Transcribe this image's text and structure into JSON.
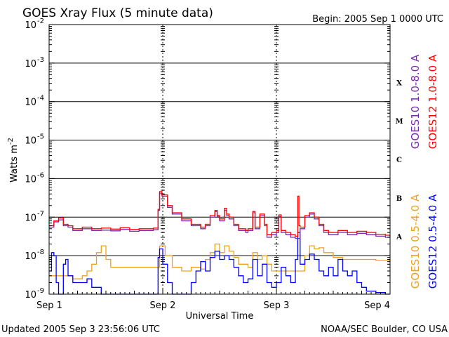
{
  "chart_data": {
    "type": "line",
    "title": "GOES Xray Flux (5 minute data)",
    "subtitle": "Begin:  2005 Sep 1 0000 UTC",
    "xlabel": "Universal Time",
    "ylabel": "Watts m",
    "ylabel_sup": "-2",
    "y_scale": "log",
    "ylim": [
      1e-09,
      0.01
    ],
    "xlim": [
      "2005-09-01T00:00",
      "2005-09-04T00:00"
    ],
    "x_ticks": [
      {
        "x": "2005-09-01T00:00",
        "label": "Sep 1"
      },
      {
        "x": "2005-09-02T00:00",
        "label": "Sep 2"
      },
      {
        "x": "2005-09-03T00:00",
        "label": "Sep 3"
      },
      {
        "x": "2005-09-04T00:00",
        "label": "Sep 4"
      }
    ],
    "y_ticks": [
      {
        "exp": -9,
        "base": "10",
        "sup": "-9"
      },
      {
        "exp": -8,
        "base": "10",
        "sup": "-8"
      },
      {
        "exp": -7,
        "base": "10",
        "sup": "-7"
      },
      {
        "exp": -6,
        "base": "10",
        "sup": "-6"
      },
      {
        "exp": -5,
        "base": "10",
        "sup": "-5"
      },
      {
        "exp": -4,
        "base": "10",
        "sup": "-4"
      },
      {
        "exp": -3,
        "base": "10",
        "sup": "-3"
      },
      {
        "exp": -2,
        "base": "10",
        "sup": "-2"
      }
    ],
    "flare_classes": [
      {
        "label": "A",
        "exp": -8
      },
      {
        "label": "B",
        "exp": -7
      },
      {
        "label": "C",
        "exp": -6
      },
      {
        "label": "M",
        "exp": -5
      },
      {
        "label": "X",
        "exp": -4
      }
    ],
    "grid": true,
    "series": [
      {
        "name": "GOES10 1.0-8.0 A",
        "color": "#7b2ab0",
        "points": [
          [
            "2005-09-01T00:00",
            5.5e-08
          ],
          [
            "2005-09-01T01:00",
            7.5e-08
          ],
          [
            "2005-09-01T02:00",
            8.5e-08
          ],
          [
            "2005-09-01T03:00",
            6e-08
          ],
          [
            "2005-09-01T04:00",
            5.5e-08
          ],
          [
            "2005-09-01T05:00",
            4.5e-08
          ],
          [
            "2005-09-01T07:00",
            5e-08
          ],
          [
            "2005-09-01T09:00",
            4.5e-08
          ],
          [
            "2005-09-01T11:00",
            4.6e-08
          ],
          [
            "2005-09-01T13:00",
            4.4e-08
          ],
          [
            "2005-09-01T15:00",
            4.8e-08
          ],
          [
            "2005-09-01T17:00",
            4.3e-08
          ],
          [
            "2005-09-01T19:00",
            4.5e-08
          ],
          [
            "2005-09-01T21:00",
            4.5e-08
          ],
          [
            "2005-09-01T22:00",
            4.7e-08
          ],
          [
            "2005-09-01T23:00",
            1.5e-07
          ],
          [
            "2005-09-01T23:20",
            4.2e-07
          ],
          [
            "2005-09-01T23:50",
            3.5e-07
          ],
          [
            "2005-09-02T01:00",
            1.8e-07
          ],
          [
            "2005-09-02T02:00",
            1.2e-07
          ],
          [
            "2005-09-02T04:00",
            8e-08
          ],
          [
            "2005-09-02T06:00",
            6e-08
          ],
          [
            "2005-09-02T08:00",
            5e-08
          ],
          [
            "2005-09-02T09:00",
            6e-08
          ],
          [
            "2005-09-02T10:00",
            1e-07
          ],
          [
            "2005-09-02T11:00",
            1.4e-07
          ],
          [
            "2005-09-02T11:30",
            1.05e-07
          ],
          [
            "2005-09-02T12:00",
            8e-08
          ],
          [
            "2005-09-02T13:00",
            1.5e-07
          ],
          [
            "2005-09-02T13:30",
            1.1e-07
          ],
          [
            "2005-09-02T14:00",
            9e-08
          ],
          [
            "2005-09-02T15:00",
            6e-08
          ],
          [
            "2005-09-02T16:00",
            4.5e-08
          ],
          [
            "2005-09-02T17:30",
            4e-08
          ],
          [
            "2005-09-02T18:00",
            4.5e-08
          ],
          [
            "2005-09-02T19:00",
            1.3e-07
          ],
          [
            "2005-09-02T19:30",
            5e-08
          ],
          [
            "2005-09-02T20:30",
            1.1e-07
          ],
          [
            "2005-09-02T21:30",
            6e-08
          ],
          [
            "2005-09-02T22:00",
            3e-08
          ],
          [
            "2005-09-02T23:00",
            3.5e-08
          ],
          [
            "2005-09-03T00:00",
            4e-08
          ],
          [
            "2005-09-03T00:30",
            1.05e-07
          ],
          [
            "2005-09-03T01:00",
            4e-08
          ],
          [
            "2005-09-03T02:00",
            3.5e-08
          ],
          [
            "2005-09-03T03:00",
            3e-08
          ],
          [
            "2005-09-03T04:00",
            2.8e-08
          ],
          [
            "2005-09-03T05:00",
            5e-08
          ],
          [
            "2005-09-03T06:00",
            1e-07
          ],
          [
            "2005-09-03T07:00",
            1.2e-07
          ],
          [
            "2005-09-03T08:00",
            9e-08
          ],
          [
            "2005-09-03T09:00",
            6e-08
          ],
          [
            "2005-09-03T10:00",
            4e-08
          ],
          [
            "2005-09-03T11:00",
            3.5e-08
          ],
          [
            "2005-09-03T13:00",
            4e-08
          ],
          [
            "2005-09-03T15:00",
            3.5e-08
          ],
          [
            "2005-09-03T17:00",
            3.8e-08
          ],
          [
            "2005-09-03T19:00",
            3.5e-08
          ],
          [
            "2005-09-03T21:00",
            3.2e-08
          ],
          [
            "2005-09-03T23:00",
            3e-08
          ],
          [
            "2005-09-03T23:55",
            3e-08
          ]
        ]
      },
      {
        "name": "GOES12 1.0-8.0 A",
        "color": "#ff0000",
        "points": [
          [
            "2005-09-01T00:00",
            6e-08
          ],
          [
            "2005-09-01T01:00",
            8e-08
          ],
          [
            "2005-09-01T02:00",
            9.5e-08
          ],
          [
            "2005-09-01T03:00",
            6.5e-08
          ],
          [
            "2005-09-01T04:00",
            6e-08
          ],
          [
            "2005-09-01T05:00",
            5e-08
          ],
          [
            "2005-09-01T07:00",
            5.5e-08
          ],
          [
            "2005-09-01T09:00",
            5e-08
          ],
          [
            "2005-09-01T11:00",
            5.2e-08
          ],
          [
            "2005-09-01T13:00",
            4.9e-08
          ],
          [
            "2005-09-01T15:00",
            5.3e-08
          ],
          [
            "2005-09-01T17:00",
            4.8e-08
          ],
          [
            "2005-09-01T19:00",
            5e-08
          ],
          [
            "2005-09-01T21:00",
            5e-08
          ],
          [
            "2005-09-01T22:00",
            5.2e-08
          ],
          [
            "2005-09-01T23:00",
            1.6e-07
          ],
          [
            "2005-09-01T23:20",
            4.6e-07
          ],
          [
            "2005-09-01T23:50",
            3.8e-07
          ],
          [
            "2005-09-02T01:00",
            2e-07
          ],
          [
            "2005-09-02T02:00",
            1.3e-07
          ],
          [
            "2005-09-02T04:00",
            9e-08
          ],
          [
            "2005-09-02T06:00",
            6.5e-08
          ],
          [
            "2005-09-02T08:00",
            5.5e-08
          ],
          [
            "2005-09-02T09:00",
            6.5e-08
          ],
          [
            "2005-09-02T10:00",
            1.1e-07
          ],
          [
            "2005-09-02T11:00",
            1.5e-07
          ],
          [
            "2005-09-02T11:30",
            1.1e-07
          ],
          [
            "2005-09-02T12:00",
            9e-08
          ],
          [
            "2005-09-02T13:00",
            1.7e-07
          ],
          [
            "2005-09-02T13:30",
            1.2e-07
          ],
          [
            "2005-09-02T14:00",
            1e-07
          ],
          [
            "2005-09-02T15:00",
            6.5e-08
          ],
          [
            "2005-09-02T16:00",
            5e-08
          ],
          [
            "2005-09-02T17:30",
            4.5e-08
          ],
          [
            "2005-09-02T18:00",
            5e-08
          ],
          [
            "2005-09-02T19:00",
            1.4e-07
          ],
          [
            "2005-09-02T19:30",
            5.5e-08
          ],
          [
            "2005-09-02T20:30",
            1.2e-07
          ],
          [
            "2005-09-02T21:30",
            6.5e-08
          ],
          [
            "2005-09-02T22:00",
            3.5e-08
          ],
          [
            "2005-09-02T23:00",
            4e-08
          ],
          [
            "2005-09-03T00:00",
            4.5e-08
          ],
          [
            "2005-09-03T00:30",
            1.15e-07
          ],
          [
            "2005-09-03T01:00",
            4.5e-08
          ],
          [
            "2005-09-03T02:00",
            4e-08
          ],
          [
            "2005-09-03T03:00",
            3.5e-08
          ],
          [
            "2005-09-03T04:00",
            3.2e-08
          ],
          [
            "2005-09-03T04:30",
            3.5e-07
          ],
          [
            "2005-09-03T04:45",
            6e-08
          ],
          [
            "2005-09-03T05:00",
            5.5e-08
          ],
          [
            "2005-09-03T06:00",
            1.1e-07
          ],
          [
            "2005-09-03T07:00",
            1.3e-07
          ],
          [
            "2005-09-03T08:00",
            1e-07
          ],
          [
            "2005-09-03T09:00",
            6.5e-08
          ],
          [
            "2005-09-03T10:00",
            4.5e-08
          ],
          [
            "2005-09-03T11:00",
            4e-08
          ],
          [
            "2005-09-03T13:00",
            4.5e-08
          ],
          [
            "2005-09-03T15:00",
            4e-08
          ],
          [
            "2005-09-03T17:00",
            4.3e-08
          ],
          [
            "2005-09-03T19:00",
            4e-08
          ],
          [
            "2005-09-03T21:00",
            3.6e-08
          ],
          [
            "2005-09-03T23:00",
            3.4e-08
          ],
          [
            "2005-09-03T23:55",
            3.2e-08
          ]
        ]
      },
      {
        "name": "GOES10 0.5-4.0 A",
        "color": "#f0a020",
        "points": [
          [
            "2005-09-01T00:00",
            3e-09
          ],
          [
            "2005-09-01T03:00",
            3e-09
          ],
          [
            "2005-09-01T05:00",
            2.5e-09
          ],
          [
            "2005-09-01T07:00",
            3e-09
          ],
          [
            "2005-09-01T08:00",
            4e-09
          ],
          [
            "2005-09-01T09:00",
            6e-09
          ],
          [
            "2005-09-01T10:00",
            1.2e-08
          ],
          [
            "2005-09-01T11:00",
            1.8e-08
          ],
          [
            "2005-09-01T12:00",
            8e-09
          ],
          [
            "2005-09-01T13:00",
            5e-09
          ],
          [
            "2005-09-01T16:00",
            5e-09
          ],
          [
            "2005-09-01T20:00",
            5e-09
          ],
          [
            "2005-09-01T23:00",
            5e-09
          ],
          [
            "2005-09-01T23:20",
            1.8e-08
          ],
          [
            "2005-09-02T00:30",
            1e-08
          ],
          [
            "2005-09-02T02:00",
            5e-09
          ],
          [
            "2005-09-02T04:00",
            4e-09
          ],
          [
            "2005-09-02T06:00",
            5e-09
          ],
          [
            "2005-09-02T08:00",
            4.5e-09
          ],
          [
            "2005-09-02T09:00",
            8e-09
          ],
          [
            "2005-09-02T10:00",
            1.2e-08
          ],
          [
            "2005-09-02T11:00",
            2e-08
          ],
          [
            "2005-09-02T12:00",
            1.2e-08
          ],
          [
            "2005-09-02T13:00",
            1.8e-08
          ],
          [
            "2005-09-02T14:00",
            1.3e-08
          ],
          [
            "2005-09-02T15:00",
            9e-09
          ],
          [
            "2005-09-02T16:00",
            6e-09
          ],
          [
            "2005-09-02T18:00",
            5e-09
          ],
          [
            "2005-09-02T19:00",
            1.2e-08
          ],
          [
            "2005-09-02T20:00",
            8e-09
          ],
          [
            "2005-09-02T21:00",
            1e-08
          ],
          [
            "2005-09-02T22:00",
            6e-09
          ],
          [
            "2005-09-02T23:00",
            4e-09
          ],
          [
            "2005-09-02T23:55",
            4e-09
          ],
          [
            "2005-09-03T06:00",
            1e-08
          ],
          [
            "2005-09-03T07:00",
            1.8e-08
          ],
          [
            "2005-09-03T08:00",
            1.5e-08
          ],
          [
            "2005-09-03T09:00",
            1.6e-08
          ],
          [
            "2005-09-03T10:00",
            1.2e-08
          ],
          [
            "2005-09-03T12:00",
            9e-09
          ],
          [
            "2005-09-03T14:00",
            8e-09
          ],
          [
            "2005-09-03T18:00",
            8e-09
          ],
          [
            "2005-09-03T21:00",
            7.5e-09
          ],
          [
            "2005-09-03T23:55",
            7e-09
          ]
        ]
      },
      {
        "name": "GOES12 0.5-4.0 A",
        "color": "#0000ff",
        "points": [
          [
            "2005-09-01T00:00",
            4e-09
          ],
          [
            "2005-09-01T00:30",
            1.2e-08
          ],
          [
            "2005-09-01T01:00",
            1e-08
          ],
          [
            "2005-09-01T01:30",
            2e-09
          ],
          [
            "2005-09-01T02:00",
            1e-09
          ],
          [
            "2005-09-01T03:00",
            6e-09
          ],
          [
            "2005-09-01T03:30",
            8e-09
          ],
          [
            "2005-09-01T04:00",
            3e-09
          ],
          [
            "2005-09-01T05:00",
            2e-09
          ],
          [
            "2005-09-01T07:00",
            2e-09
          ],
          [
            "2005-09-01T08:00",
            2.5e-09
          ],
          [
            "2005-09-01T09:00",
            1.5e-09
          ],
          [
            "2005-09-01T11:00",
            1e-09
          ],
          [
            "2005-09-01T14:00",
            1e-09
          ],
          [
            "2005-09-01T17:00",
            1e-09
          ],
          [
            "2005-09-01T23:00",
            9e-09
          ],
          [
            "2005-09-01T23:20",
            1.5e-08
          ],
          [
            "2005-09-02T00:00",
            6e-09
          ],
          [
            "2005-09-02T01:00",
            2e-09
          ],
          [
            "2005-09-02T02:00",
            1e-09
          ],
          [
            "2005-09-02T04:00",
            1e-09
          ],
          [
            "2005-09-02T06:00",
            2e-09
          ],
          [
            "2005-09-02T07:00",
            4e-09
          ],
          [
            "2005-09-02T08:00",
            7e-09
          ],
          [
            "2005-09-02T09:00",
            4e-09
          ],
          [
            "2005-09-02T10:00",
            9e-09
          ],
          [
            "2005-09-02T11:00",
            1.3e-08
          ],
          [
            "2005-09-02T12:00",
            8e-09
          ],
          [
            "2005-09-02T13:00",
            1e-08
          ],
          [
            "2005-09-02T14:00",
            8e-09
          ],
          [
            "2005-09-02T15:00",
            5e-09
          ],
          [
            "2005-09-02T16:00",
            3e-09
          ],
          [
            "2005-09-02T17:00",
            2e-09
          ],
          [
            "2005-09-02T18:00",
            2.5e-09
          ],
          [
            "2005-09-02T19:00",
            8e-09
          ],
          [
            "2005-09-02T20:00",
            3e-09
          ],
          [
            "2005-09-02T21:00",
            6e-09
          ],
          [
            "2005-09-02T22:00",
            2e-09
          ],
          [
            "2005-09-02T23:00",
            1.5e-09
          ],
          [
            "2005-09-03T00:00",
            2e-09
          ],
          [
            "2005-09-03T01:00",
            5e-09
          ],
          [
            "2005-09-03T02:00",
            3e-09
          ],
          [
            "2005-09-03T03:00",
            2e-09
          ],
          [
            "2005-09-03T04:00",
            8e-09
          ],
          [
            "2005-09-03T04:30",
            4e-08
          ],
          [
            "2005-09-03T05:00",
            6e-09
          ],
          [
            "2005-09-03T06:00",
            8e-09
          ],
          [
            "2005-09-03T07:00",
            1.1e-08
          ],
          [
            "2005-09-03T08:00",
            8e-09
          ],
          [
            "2005-09-03T09:00",
            4e-09
          ],
          [
            "2005-09-03T10:00",
            3e-09
          ],
          [
            "2005-09-03T11:00",
            5e-09
          ],
          [
            "2005-09-03T12:00",
            3e-09
          ],
          [
            "2005-09-03T13:00",
            8e-09
          ],
          [
            "2005-09-03T14:00",
            4e-09
          ],
          [
            "2005-09-03T15:00",
            3e-09
          ],
          [
            "2005-09-03T16:00",
            4e-09
          ],
          [
            "2005-09-03T17:00",
            2e-09
          ],
          [
            "2005-09-03T18:00",
            1.5e-09
          ],
          [
            "2005-09-03T19:00",
            1.2e-09
          ],
          [
            "2005-09-03T21:00",
            1.1e-09
          ],
          [
            "2005-09-03T23:00",
            1e-09
          ],
          [
            "2005-09-03T23:55",
            1e-09
          ]
        ]
      }
    ]
  },
  "footer": {
    "updated": "Updated 2005 Sep  3 23:56:06 UTC",
    "source": "NOAA/SEC Boulder, CO USA"
  }
}
